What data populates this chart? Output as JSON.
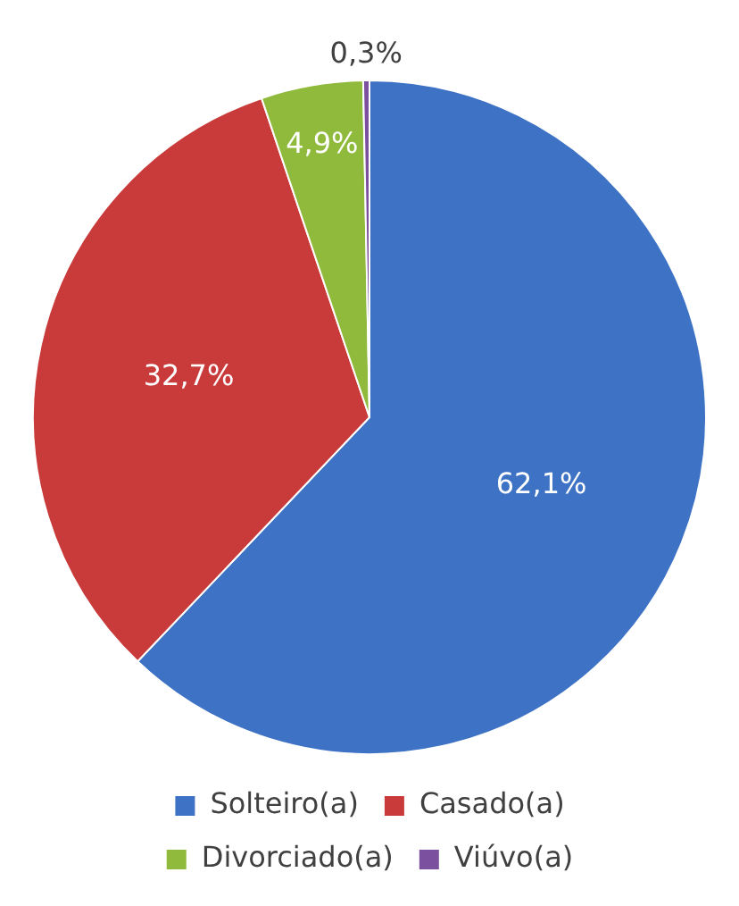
{
  "chart_data": {
    "type": "pie",
    "categories": [
      "Solteiro(a)",
      "Casado(a)",
      "Divorciado(a)",
      "Viúvo(a)"
    ],
    "values": [
      62.1,
      32.7,
      4.9,
      0.3
    ],
    "colors": [
      "#3d72c4",
      "#c93a3a",
      "#8fba3c",
      "#7b519f"
    ],
    "value_labels": [
      "62,1%",
      "32,7%",
      "4,9%",
      "0,3%"
    ],
    "legend": "bottom"
  }
}
